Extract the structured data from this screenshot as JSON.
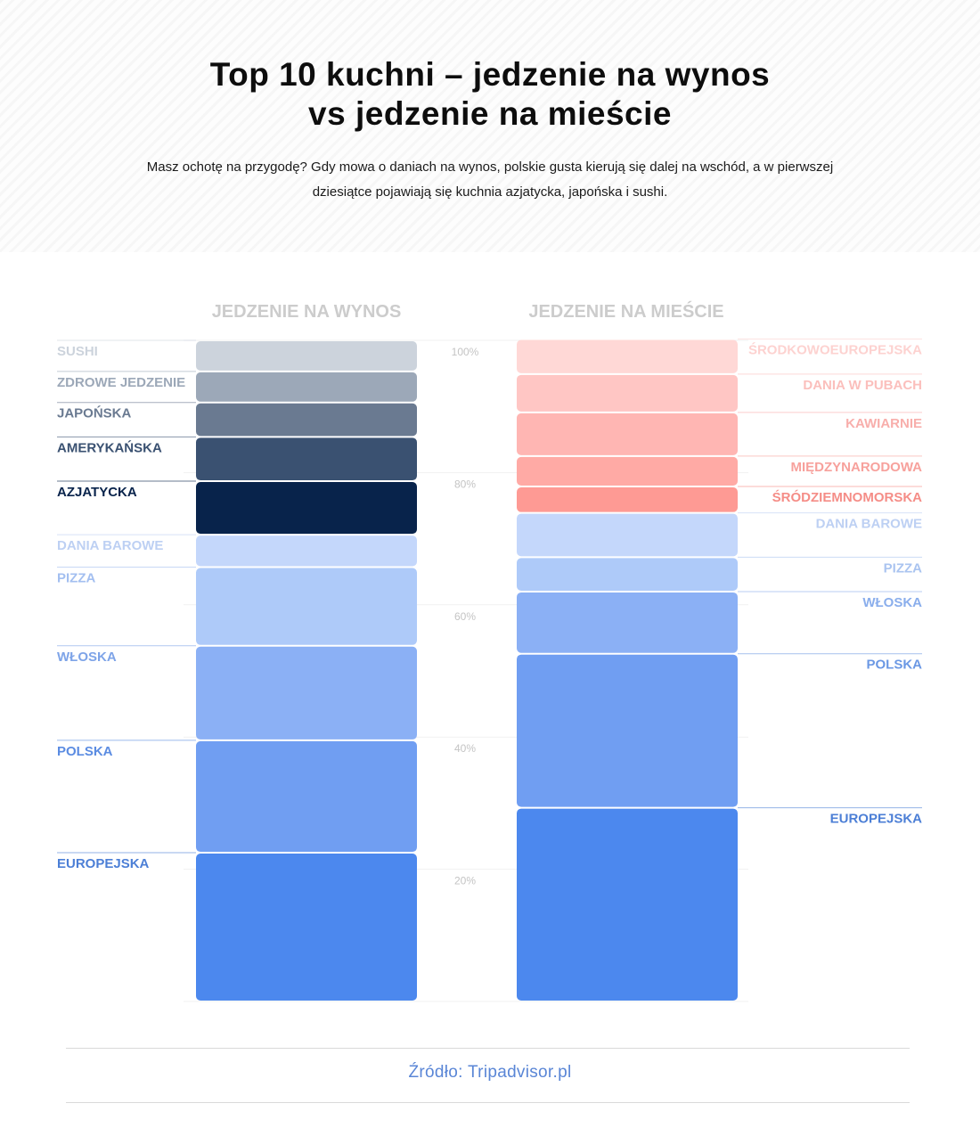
{
  "header": {
    "title_line1": "Top 10 kuchni – jedzenie na wynos",
    "title_line2": "vs jedzenie na mieście",
    "subtitle": "Masz ochotę na przygodę? Gdy mowa o daniach na wynos, polskie gusta kierują się dalej na wschód, a w pierwszej dziesiątce pojawiają się kuchnia azjatycka, japońska i sushi."
  },
  "footer": {
    "source": "Źródło: Tripadvisor.pl"
  },
  "chart_data": {
    "type": "bar",
    "stacked": true,
    "y_ticks": [
      "100%",
      "80%",
      "60%",
      "40%",
      "20%"
    ],
    "y_tick_values": [
      100,
      80,
      60,
      40,
      20
    ],
    "ylim": [
      0,
      100
    ],
    "grid": true,
    "columns": [
      {
        "title": "JEDZENIE NA WYNOS",
        "label_side": "left",
        "segments": [
          {
            "label": "EUROPEJSKA",
            "value": 22.5,
            "color": "#4c88ee",
            "label_color": "#4c7fd6"
          },
          {
            "label": "POLSKA",
            "value": 17.0,
            "color": "#709ef2",
            "label_color": "#5b8ce2"
          },
          {
            "label": "WŁOSKA",
            "value": 14.3,
            "color": "#8bb0f5",
            "label_color": "#7ea4e8"
          },
          {
            "label": "PIZZA",
            "value": 11.9,
            "color": "#aecaf9",
            "label_color": "#a3bff0"
          },
          {
            "label": "DANIA BAROWE",
            "value": 4.9,
            "color": "#c4d7fb",
            "label_color": "#bdd0f3"
          },
          {
            "label": "AZJATYCKA",
            "value": 8.1,
            "color": "#08234b",
            "label_color": "#08234b"
          },
          {
            "label": "AMERYKAŃSKA",
            "value": 6.7,
            "color": "#3a5171",
            "label_color": "#3a5171"
          },
          {
            "label": "JAPOŃSKA",
            "value": 5.2,
            "color": "#6a7a91",
            "label_color": "#6a7a91"
          },
          {
            "label": "ZDROWE JEDZENIE",
            "value": 4.7,
            "color": "#9ca8b8",
            "label_color": "#9ca8b8"
          },
          {
            "label": "SUSHI",
            "value": 4.7,
            "color": "#ccd3dc",
            "label_color": "#ccd3dc"
          }
        ]
      },
      {
        "title": "JEDZENIE  NA MIEŚCIE",
        "label_side": "right",
        "segments": [
          {
            "label": "EUROPEJSKA",
            "value": 29.3,
            "color": "#4c88ee",
            "label_color": "#4c7fd6"
          },
          {
            "label": "POLSKA",
            "value": 23.3,
            "color": "#709ef2",
            "label_color": "#6b98e4"
          },
          {
            "label": "WŁOSKA",
            "value": 9.4,
            "color": "#8bb0f5",
            "label_color": "#8aaeec"
          },
          {
            "label": "PIZZA",
            "value": 5.2,
            "color": "#aecaf9",
            "label_color": "#aac4f0"
          },
          {
            "label": "DANIA BAROWE",
            "value": 6.7,
            "color": "#c4d7fb",
            "label_color": "#bdd0f3"
          },
          {
            "label": "ŚRÓDZIEMNOMORSKA",
            "value": 4.0,
            "color": "#fe9a94",
            "label_color": "#f58d87"
          },
          {
            "label": "MIĘDZYNARODOWA",
            "value": 4.6,
            "color": "#ffaaa5",
            "label_color": "#f7a19c"
          },
          {
            "label": "KAWIARNIE",
            "value": 6.6,
            "color": "#ffb6b3",
            "label_color": "#f8aeab"
          },
          {
            "label": "DANIA W PUBACH",
            "value": 5.8,
            "color": "#ffc6c4",
            "label_color": "#fbbfbc"
          },
          {
            "label": "ŚRODKOWOEUROPEJSKA",
            "value": 5.3,
            "color": "#ffd8d6",
            "label_color": "#fdd2d0"
          }
        ]
      }
    ]
  }
}
